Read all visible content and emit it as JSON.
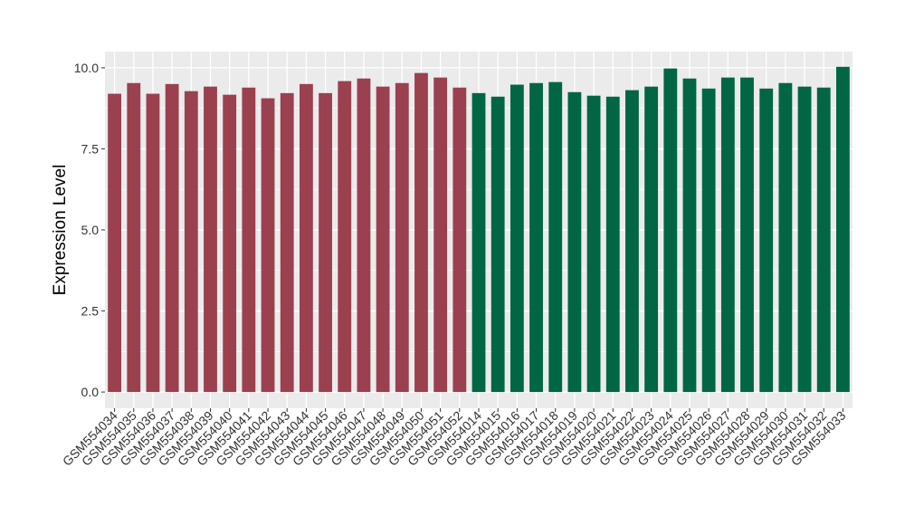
{
  "chart_data": {
    "type": "bar",
    "title": "",
    "xlabel": "",
    "ylabel": "Expression Level",
    "ylim": [
      -0.5,
      10.5
    ],
    "yticks": [
      "0.0",
      "2.5",
      "5.0",
      "7.5",
      "10.0"
    ],
    "grid": true,
    "categories": [
      "GSM554034",
      "GSM554035",
      "GSM554036",
      "GSM554037",
      "GSM554038",
      "GSM554039",
      "GSM554040",
      "GSM554041",
      "GSM554042",
      "GSM554043",
      "GSM554044",
      "GSM554045",
      "GSM554046",
      "GSM554047",
      "GSM554048",
      "GSM554049",
      "GSM554050",
      "GSM554051",
      "GSM554052",
      "GSM554014",
      "GSM554015",
      "GSM554016",
      "GSM554017",
      "GSM554018",
      "GSM554019",
      "GSM554020",
      "GSM554021",
      "GSM554022",
      "GSM554023",
      "GSM554024",
      "GSM554025",
      "GSM554026",
      "GSM554027",
      "GSM554028",
      "GSM554029",
      "GSM554030",
      "GSM554031",
      "GSM554032",
      "GSM554033"
    ],
    "values": [
      9.2,
      9.53,
      9.2,
      9.5,
      9.28,
      9.42,
      9.17,
      9.39,
      9.06,
      9.22,
      9.5,
      9.22,
      9.59,
      9.67,
      9.42,
      9.53,
      9.84,
      9.7,
      9.39,
      9.22,
      9.11,
      9.48,
      9.53,
      9.56,
      9.25,
      9.14,
      9.11,
      9.31,
      9.42,
      9.98,
      9.67,
      9.36,
      9.7,
      9.7,
      9.36,
      9.53,
      9.42,
      9.39,
      10.03
    ],
    "groups": [
      0,
      0,
      0,
      0,
      0,
      0,
      0,
      0,
      0,
      0,
      0,
      0,
      0,
      0,
      0,
      0,
      0,
      0,
      0,
      1,
      1,
      1,
      1,
      1,
      1,
      1,
      1,
      1,
      1,
      1,
      1,
      1,
      1,
      1,
      1,
      1,
      1,
      1,
      1
    ],
    "colors": [
      "#9b404f",
      "#006644"
    ],
    "panel_bg": "#ebebeb"
  }
}
